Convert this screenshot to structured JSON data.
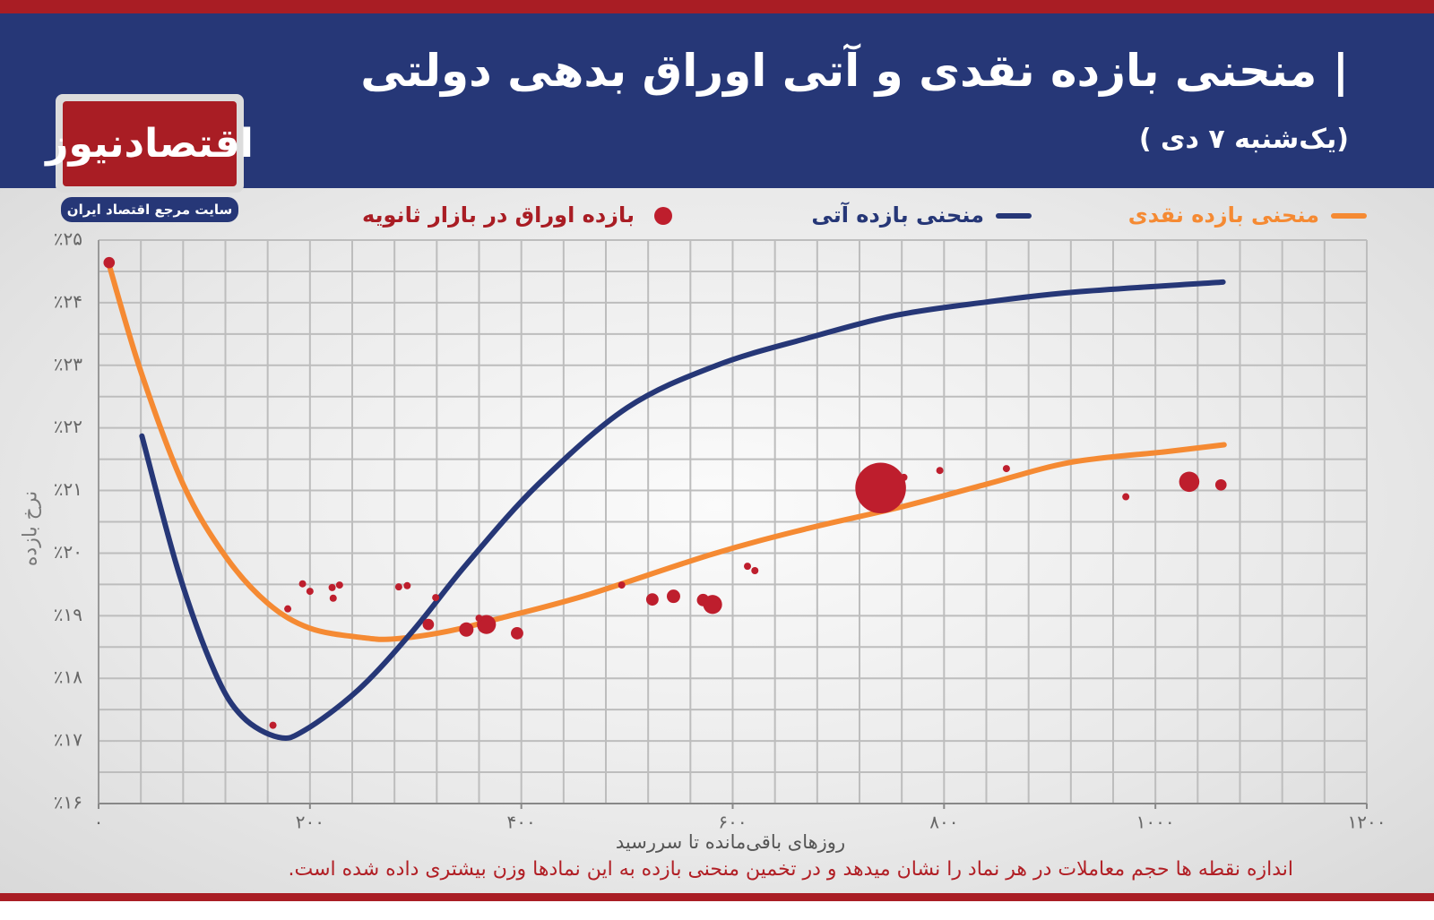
{
  "chart_data": {
    "type": "combo",
    "title": "| منحنی بازده نقدی و آتی اوراق بدهی دولتی",
    "subtitle": "(یک‌شنبه ۷ دی )",
    "logo": {
      "name": "اقتصادنیوز",
      "tagline": "سایت مرجع اقتصاد ایران"
    },
    "x_label": "روزهای باقی‌مانده تا سررسید",
    "y_label": "نرخ بازده",
    "note": "اندازه نقطه ها حجم معاملات در هر نماد را نشان میدهد و در تخمین منحنی بازده به این نمادها وزن بیشتری داده شده است.",
    "xlim": [
      0,
      1200
    ],
    "ylim": [
      16,
      25
    ],
    "xticks": [
      {
        "value": 0,
        "label": "۰"
      },
      {
        "value": 200,
        "label": "۲۰۰"
      },
      {
        "value": 400,
        "label": "۴۰۰"
      },
      {
        "value": 600,
        "label": "۶۰۰"
      },
      {
        "value": 800,
        "label": "۸۰۰"
      },
      {
        "value": 1000,
        "label": "۱۰۰۰"
      },
      {
        "value": 1200,
        "label": "۱۲۰۰"
      }
    ],
    "yticks": [
      {
        "value": 16,
        "label": "٪۱۶"
      },
      {
        "value": 17,
        "label": "٪۱۷"
      },
      {
        "value": 18,
        "label": "٪۱۸"
      },
      {
        "value": 19,
        "label": "٪۱۹"
      },
      {
        "value": 20,
        "label": "٪۲۰"
      },
      {
        "value": 21,
        "label": "٪۲۱"
      },
      {
        "value": 22,
        "label": "٪۲۲"
      },
      {
        "value": 23,
        "label": "٪۲۳"
      },
      {
        "value": 24,
        "label": "٪۲۴"
      },
      {
        "value": 25,
        "label": "٪۲۵"
      }
    ],
    "xgrid": [
      0,
      40,
      80,
      120,
      160,
      200,
      240,
      280,
      320,
      360,
      400,
      440,
      480,
      520,
      560,
      600,
      640,
      680,
      720,
      760,
      800,
      840,
      880,
      920,
      960,
      1000,
      1040,
      1080,
      1120,
      1160,
      1200
    ],
    "ygrid": [
      16,
      16.5,
      17,
      17.5,
      18,
      18.5,
      19,
      19.5,
      20,
      20.5,
      21,
      21.5,
      22,
      22.5,
      23,
      23.5,
      24,
      24.5,
      25
    ],
    "grid": true,
    "series": [
      {
        "name": "منحنی بازده نقدی",
        "type": "line",
        "color": "#f58a33",
        "x": [
          10,
          40,
          80,
          120,
          160,
          200,
          250,
          280,
          330,
          380,
          460,
          580,
          670,
          760,
          840,
          920,
          1010,
          1065
        ],
        "values": [
          24.6,
          22.9,
          21.1,
          19.95,
          19.2,
          18.8,
          18.65,
          18.63,
          18.75,
          18.96,
          19.32,
          19.98,
          20.39,
          20.74,
          21.1,
          21.45,
          21.62,
          21.73
        ]
      },
      {
        "name": "منحنی بازده آتی",
        "type": "line",
        "color": "#263777",
        "x": [
          41,
          76,
          110,
          136,
          170,
          195,
          246,
          297,
          348,
          416,
          500,
          585,
          670,
          755,
          840,
          924,
          1064
        ],
        "values": [
          21.87,
          19.68,
          18.1,
          17.39,
          17.06,
          17.17,
          17.82,
          18.75,
          19.82,
          21.1,
          22.32,
          23.0,
          23.43,
          23.8,
          24.01,
          24.17,
          24.33
        ]
      },
      {
        "name": "بازده اوراق در بازار ثانویه",
        "type": "scatter",
        "color": "#be1e2d",
        "x": [
          10,
          165,
          179,
          193,
          200,
          221,
          228,
          222,
          284,
          292,
          319,
          312,
          348,
          367,
          360,
          396,
          495,
          524,
          544,
          572,
          581,
          614,
          621,
          740,
          762,
          796,
          859,
          972,
          1032,
          1062
        ],
        "values": [
          24.64,
          17.25,
          19.11,
          19.51,
          19.39,
          19.45,
          19.49,
          19.28,
          19.46,
          19.48,
          19.29,
          18.86,
          18.78,
          18.86,
          18.96,
          18.72,
          19.49,
          19.26,
          19.31,
          19.25,
          19.18,
          19.79,
          19.72,
          21.04,
          21.21,
          21.32,
          21.35,
          20.9,
          21.14,
          21.09
        ],
        "sizes": [
          2.5,
          1,
          1,
          1,
          1,
          1,
          1,
          1,
          1,
          1,
          1,
          2.5,
          4,
          7,
          1,
          3,
          1,
          3,
          3.5,
          3,
          7,
          1,
          1,
          50,
          1,
          1,
          1,
          1,
          8,
          2.5
        ]
      }
    ]
  }
}
